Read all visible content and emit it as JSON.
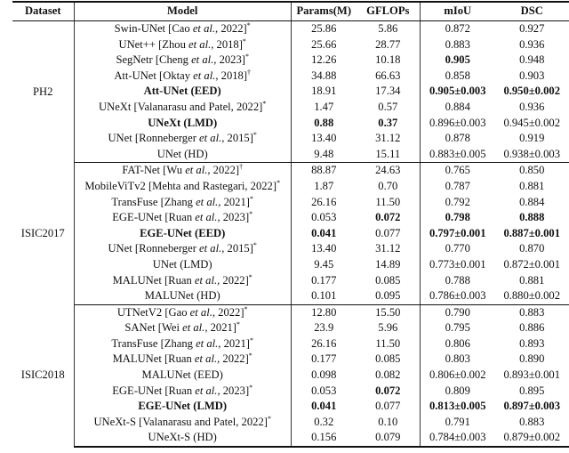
{
  "table": {
    "headers": [
      "Dataset",
      "Model",
      "Params(M)",
      "GFLOPs",
      "mIoU",
      "DSC"
    ],
    "groups": [
      {
        "dataset": "PH2",
        "rows": [
          {
            "model": {
              "pre": "Swin-UNet [Cao ",
              "em": "et al.",
              "post": ", 2022]",
              "mark": "*"
            },
            "params": "25.86",
            "gflops": "5.86",
            "miou": "0.872",
            "dsc": "0.927",
            "bold": []
          },
          {
            "model": {
              "pre": "UNet++ [Zhou ",
              "em": "et al.",
              "post": ", 2018]",
              "mark": "*"
            },
            "params": "25.66",
            "gflops": "28.77",
            "miou": "0.883",
            "dsc": "0.936",
            "bold": []
          },
          {
            "model": {
              "pre": "SegNetr [Cheng ",
              "em": "et al.",
              "post": ", 2023]",
              "mark": "*"
            },
            "params": "12.26",
            "gflops": "10.18",
            "miou": "0.905",
            "dsc": "0.948",
            "bold": [
              "miou"
            ]
          },
          {
            "model": {
              "pre": "Att-UNet [Oktay ",
              "em": "et al.",
              "post": ", 2018]",
              "mark": "†"
            },
            "params": "34.88",
            "gflops": "66.63",
            "miou": "0.858",
            "dsc": "0.903",
            "bold": []
          },
          {
            "model": {
              "pre": "Att-UNet (EED)",
              "em": "",
              "post": "",
              "mark": ""
            },
            "params": "18.91",
            "gflops": "17.34",
            "miou": "0.905±0.003",
            "dsc": "0.950±0.002",
            "bold": [
              "model",
              "miou",
              "dsc"
            ]
          },
          {
            "model": {
              "pre": "UNeXt [Valanarasu and Patel, 2022]",
              "em": "",
              "post": "",
              "mark": "*"
            },
            "params": "1.47",
            "gflops": "0.57",
            "miou": "0.884",
            "dsc": "0.936",
            "bold": []
          },
          {
            "model": {
              "pre": "UNeXt (LMD)",
              "em": "",
              "post": "",
              "mark": ""
            },
            "params": "0.88",
            "gflops": "0.37",
            "miou": "0.896±0.003",
            "dsc": "0.945±0.002",
            "bold": [
              "model",
              "params",
              "gflops"
            ]
          },
          {
            "model": {
              "pre": "UNet [Ronneberger ",
              "em": "et al.",
              "post": ", 2015]",
              "mark": "*"
            },
            "params": "13.40",
            "gflops": "31.12",
            "miou": "0.878",
            "dsc": "0.919",
            "bold": []
          },
          {
            "model": {
              "pre": "UNet (HD)",
              "em": "",
              "post": "",
              "mark": ""
            },
            "params": "9.48",
            "gflops": "15.11",
            "miou": "0.883±0.005",
            "dsc": "0.938±0.003",
            "bold": []
          }
        ]
      },
      {
        "dataset": "ISIC2017",
        "rows": [
          {
            "model": {
              "pre": "FAT-Net [Wu ",
              "em": "et al.",
              "post": ", 2022]",
              "mark": "†"
            },
            "params": "88.87",
            "gflops": "24.63",
            "miou": "0.765",
            "dsc": "0.850",
            "bold": []
          },
          {
            "model": {
              "pre": "MobileViTv2 [Mehta and Rastegari, 2022]",
              "em": "",
              "post": "",
              "mark": "*"
            },
            "params": "1.87",
            "gflops": "0.70",
            "miou": "0.787",
            "dsc": "0.881",
            "bold": []
          },
          {
            "model": {
              "pre": "TransFuse [Zhang ",
              "em": "et al.",
              "post": ", 2021]",
              "mark": "*"
            },
            "params": "26.16",
            "gflops": "11.50",
            "miou": "0.792",
            "dsc": "0.884",
            "bold": []
          },
          {
            "model": {
              "pre": "EGE-UNet [Ruan ",
              "em": "et al.",
              "post": ", 2023]",
              "mark": "*"
            },
            "params": "0.053",
            "gflops": "0.072",
            "miou": "0.798",
            "dsc": "0.888",
            "bold": [
              "gflops",
              "miou",
              "dsc"
            ]
          },
          {
            "model": {
              "pre": "EGE-UNet (EED)",
              "em": "",
              "post": "",
              "mark": ""
            },
            "params": "0.041",
            "gflops": "0.077",
            "miou": "0.797±0.001",
            "dsc": "0.887±0.001",
            "bold": [
              "model",
              "params",
              "miou",
              "dsc"
            ]
          },
          {
            "model": {
              "pre": "UNet [Ronneberger ",
              "em": "et al.",
              "post": ", 2015]",
              "mark": "*"
            },
            "params": "13.40",
            "gflops": "31.12",
            "miou": "0.770",
            "dsc": "0.870",
            "bold": []
          },
          {
            "model": {
              "pre": "UNet (LMD)",
              "em": "",
              "post": "",
              "mark": ""
            },
            "params": "9.45",
            "gflops": "14.89",
            "miou": "0.773±0.001",
            "dsc": "0.872±0.001",
            "bold": []
          },
          {
            "model": {
              "pre": "MALUNet [Ruan ",
              "em": "et al.",
              "post": ", 2022]",
              "mark": "*"
            },
            "params": "0.177",
            "gflops": "0.085",
            "miou": "0.788",
            "dsc": "0.881",
            "bold": []
          },
          {
            "model": {
              "pre": "MALUNet (HD)",
              "em": "",
              "post": "",
              "mark": ""
            },
            "params": "0.101",
            "gflops": "0.095",
            "miou": "0.786±0.003",
            "dsc": "0.880±0.002",
            "bold": []
          }
        ]
      },
      {
        "dataset": "ISIC2018",
        "rows": [
          {
            "model": {
              "pre": "UTNetV2 [Gao ",
              "em": "et al.",
              "post": ", 2022]",
              "mark": "*"
            },
            "params": "12.80",
            "gflops": "15.50",
            "miou": "0.790",
            "dsc": "0.883",
            "bold": []
          },
          {
            "model": {
              "pre": "SANet [Wei ",
              "em": "et al.",
              "post": ", 2021]",
              "mark": "*"
            },
            "params": "23.9",
            "gflops": "5.96",
            "miou": "0.795",
            "dsc": "0.886",
            "bold": []
          },
          {
            "model": {
              "pre": "TransFuse [Zhang ",
              "em": "et al.",
              "post": ", 2021]",
              "mark": "*"
            },
            "params": "26.16",
            "gflops": "11.50",
            "miou": "0.806",
            "dsc": "0.893",
            "bold": []
          },
          {
            "model": {
              "pre": "MALUNet [Ruan ",
              "em": "et al.",
              "post": ", 2022]",
              "mark": "*"
            },
            "params": "0.177",
            "gflops": "0.085",
            "miou": "0.803",
            "dsc": "0.890",
            "bold": []
          },
          {
            "model": {
              "pre": "MALUNet (EED)",
              "em": "",
              "post": "",
              "mark": ""
            },
            "params": "0.098",
            "gflops": "0.082",
            "miou": "0.806±0.002",
            "dsc": "0.893±0.001",
            "bold": []
          },
          {
            "model": {
              "pre": "EGE-UNet [Ruan ",
              "em": "et al.",
              "post": ", 2023]",
              "mark": "*"
            },
            "params": "0.053",
            "gflops": "0.072",
            "miou": "0.809",
            "dsc": "0.895",
            "bold": [
              "gflops"
            ]
          },
          {
            "model": {
              "pre": "EGE-UNet (LMD)",
              "em": "",
              "post": "",
              "mark": ""
            },
            "params": "0.041",
            "gflops": "0.077",
            "miou": "0.813±0.005",
            "dsc": "0.897±0.003",
            "bold": [
              "model",
              "params",
              "miou",
              "dsc"
            ]
          },
          {
            "model": {
              "pre": "UNeXt-S [Valanarasu and Patel, 2022]",
              "em": "",
              "post": "",
              "mark": "*"
            },
            "params": "0.32",
            "gflops": "0.10",
            "miou": "0.791",
            "dsc": "0.883",
            "bold": []
          },
          {
            "model": {
              "pre": "UNeXt-S (HD)",
              "em": "",
              "post": "",
              "mark": ""
            },
            "params": "0.156",
            "gflops": "0.079",
            "miou": "0.784±0.003",
            "dsc": "0.879±0.002",
            "bold": []
          }
        ]
      }
    ]
  }
}
